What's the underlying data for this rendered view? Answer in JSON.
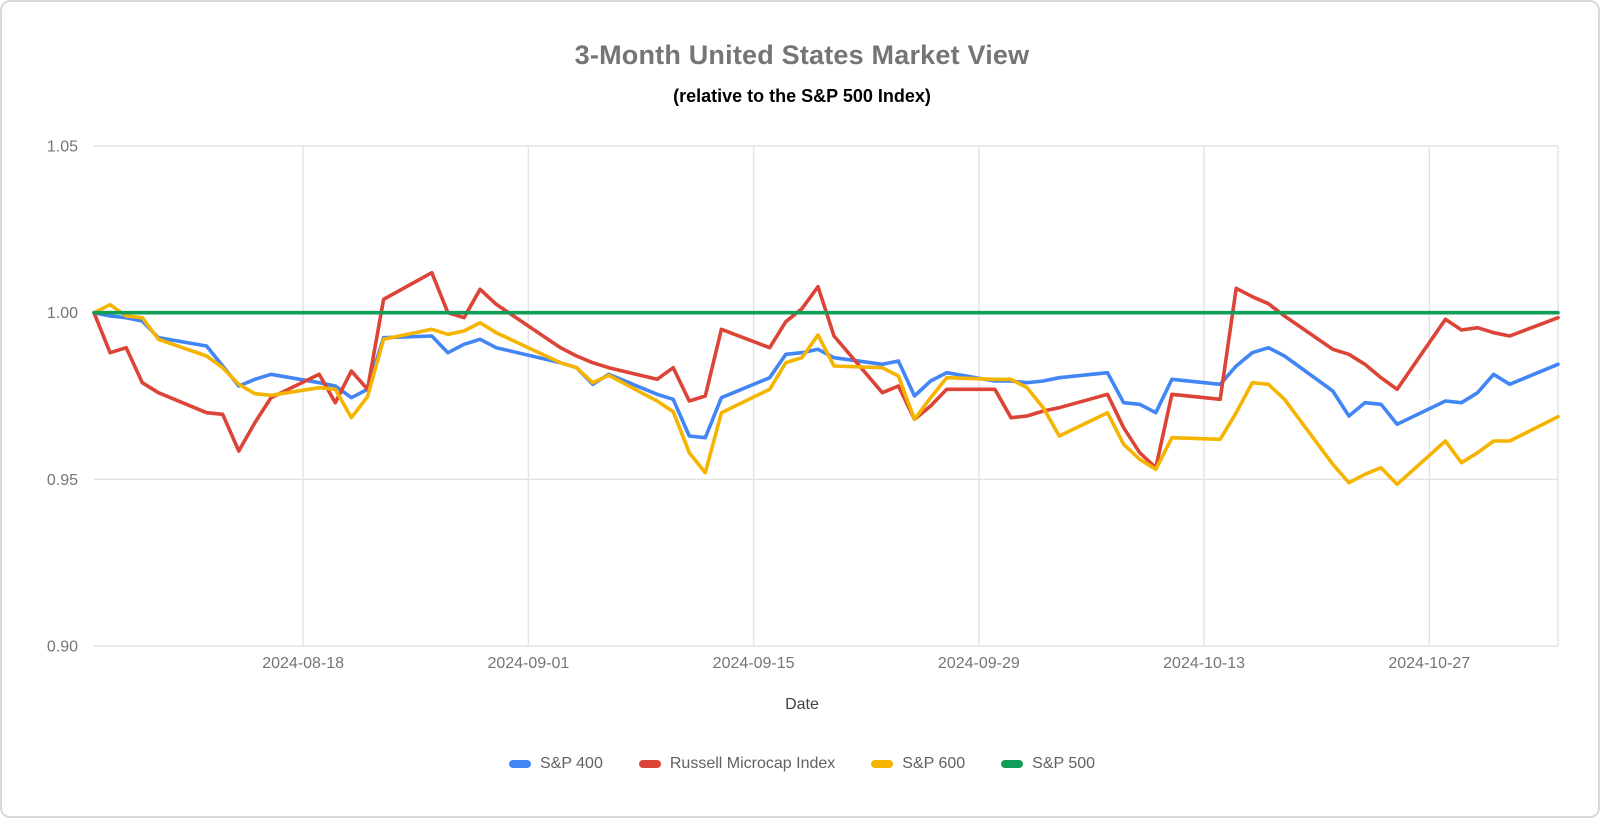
{
  "header": {
    "title": "3-Month United States Market View",
    "subtitle": "(relative to the S&P 500 Index)"
  },
  "chart_data": {
    "type": "line",
    "title": "3-Month United States Market View",
    "subtitle": "(relative to the S&P 500 Index)",
    "xlabel": "Date",
    "ylabel": "",
    "ylim": [
      0.9,
      1.05
    ],
    "y_ticks": [
      0.9,
      0.95,
      1.0,
      1.05
    ],
    "x_tick_labels": [
      "2024-08-18",
      "2024-09-01",
      "2024-09-15",
      "2024-09-29",
      "2024-10-13",
      "2024-10-27"
    ],
    "x_range": [
      "2024-08-05",
      "2024-11-04"
    ],
    "grid": true,
    "legend_position": "bottom",
    "baseline_value": 1.0,
    "dates": [
      "2024-08-05",
      "2024-08-06",
      "2024-08-07",
      "2024-08-08",
      "2024-08-09",
      "2024-08-12",
      "2024-08-13",
      "2024-08-14",
      "2024-08-15",
      "2024-08-16",
      "2024-08-19",
      "2024-08-20",
      "2024-08-21",
      "2024-08-22",
      "2024-08-23",
      "2024-08-26",
      "2024-08-27",
      "2024-08-28",
      "2024-08-29",
      "2024-08-30",
      "2024-09-03",
      "2024-09-04",
      "2024-09-05",
      "2024-09-06",
      "2024-09-09",
      "2024-09-10",
      "2024-09-11",
      "2024-09-12",
      "2024-09-13",
      "2024-09-16",
      "2024-09-17",
      "2024-09-18",
      "2024-09-19",
      "2024-09-20",
      "2024-09-23",
      "2024-09-24",
      "2024-09-25",
      "2024-09-26",
      "2024-09-27",
      "2024-09-30",
      "2024-10-01",
      "2024-10-02",
      "2024-10-03",
      "2024-10-04",
      "2024-10-07",
      "2024-10-08",
      "2024-10-09",
      "2024-10-10",
      "2024-10-11",
      "2024-10-14",
      "2024-10-15",
      "2024-10-16",
      "2024-10-17",
      "2024-10-18",
      "2024-10-21",
      "2024-10-22",
      "2024-10-23",
      "2024-10-24",
      "2024-10-25",
      "2024-10-28",
      "2024-10-29",
      "2024-10-30",
      "2024-10-31",
      "2024-11-01",
      "2024-11-04"
    ],
    "series": [
      {
        "name": "S&P 400",
        "color": "#4285F4",
        "values": [
          1.0,
          0.999,
          0.9985,
          0.9975,
          0.9925,
          0.99,
          0.984,
          0.978,
          0.98,
          0.9815,
          0.979,
          0.978,
          0.9745,
          0.977,
          0.9925,
          0.993,
          0.988,
          0.9905,
          0.992,
          0.9895,
          0.985,
          0.9835,
          0.9785,
          0.9815,
          0.9755,
          0.974,
          0.963,
          0.9625,
          0.9745,
          0.9805,
          0.9875,
          0.988,
          0.989,
          0.9865,
          0.9845,
          0.9855,
          0.975,
          0.9795,
          0.982,
          0.9795,
          0.9795,
          0.979,
          0.9795,
          0.9805,
          0.982,
          0.973,
          0.9725,
          0.97,
          0.98,
          0.9785,
          0.984,
          0.988,
          0.9895,
          0.987,
          0.9765,
          0.969,
          0.973,
          0.9725,
          0.9665,
          0.9735,
          0.973,
          0.976,
          0.9815,
          0.9785,
          0.9845
        ]
      },
      {
        "name": "Russell Microcap Index",
        "color": "#DB4437",
        "values": [
          1.0,
          0.988,
          0.9895,
          0.979,
          0.976,
          0.97,
          0.9695,
          0.9585,
          0.967,
          0.9745,
          0.9815,
          0.973,
          0.9825,
          0.977,
          1.004,
          1.012,
          1.0,
          0.9985,
          1.007,
          1.0025,
          0.9895,
          0.987,
          0.985,
          0.9835,
          0.98,
          0.9835,
          0.9735,
          0.975,
          0.995,
          0.9895,
          0.9973,
          1.0012,
          1.0078,
          0.993,
          0.976,
          0.978,
          0.968,
          0.972,
          0.977,
          0.977,
          0.9685,
          0.969,
          0.9705,
          0.9715,
          0.9755,
          0.9655,
          0.958,
          0.9535,
          0.9755,
          0.974,
          1.0073,
          1.0048,
          1.0027,
          0.999,
          0.989,
          0.9875,
          0.9845,
          0.9805,
          0.977,
          0.998,
          0.9948,
          0.9955,
          0.994,
          0.993,
          0.9985
        ]
      },
      {
        "name": "S&P 600",
        "color": "#F5B400",
        "values": [
          1.0,
          1.0024,
          0.999,
          0.9985,
          0.992,
          0.987,
          0.9835,
          0.9785,
          0.9757,
          0.9752,
          0.9775,
          0.977,
          0.9685,
          0.9748,
          0.992,
          0.995,
          0.9935,
          0.9945,
          0.997,
          0.994,
          0.985,
          0.9835,
          0.979,
          0.9812,
          0.9735,
          0.9703,
          0.958,
          0.952,
          0.97,
          0.977,
          0.985,
          0.9865,
          0.9933,
          0.984,
          0.9835,
          0.981,
          0.968,
          0.9745,
          0.9805,
          0.98,
          0.98,
          0.9775,
          0.9715,
          0.963,
          0.97,
          0.9605,
          0.956,
          0.953,
          0.9625,
          0.962,
          0.97,
          0.979,
          0.9785,
          0.974,
          0.9545,
          0.949,
          0.9515,
          0.9535,
          0.9485,
          0.9615,
          0.955,
          0.958,
          0.9615,
          0.9615,
          0.9688
        ]
      },
      {
        "name": "S&P 500",
        "color": "#0F9D58",
        "values": [
          1.0,
          1.0,
          1.0,
          1.0,
          1.0,
          1.0,
          1.0,
          1.0,
          1.0,
          1.0,
          1.0,
          1.0,
          1.0,
          1.0,
          1.0,
          1.0,
          1.0,
          1.0,
          1.0,
          1.0,
          1.0,
          1.0,
          1.0,
          1.0,
          1.0,
          1.0,
          1.0,
          1.0,
          1.0,
          1.0,
          1.0,
          1.0,
          1.0,
          1.0,
          1.0,
          1.0,
          1.0,
          1.0,
          1.0,
          1.0,
          1.0,
          1.0,
          1.0,
          1.0,
          1.0,
          1.0,
          1.0,
          1.0,
          1.0,
          1.0,
          1.0,
          1.0,
          1.0,
          1.0,
          1.0,
          1.0,
          1.0,
          1.0,
          1.0,
          1.0,
          1.0,
          1.0,
          1.0,
          1.0,
          1.0
        ]
      }
    ]
  }
}
